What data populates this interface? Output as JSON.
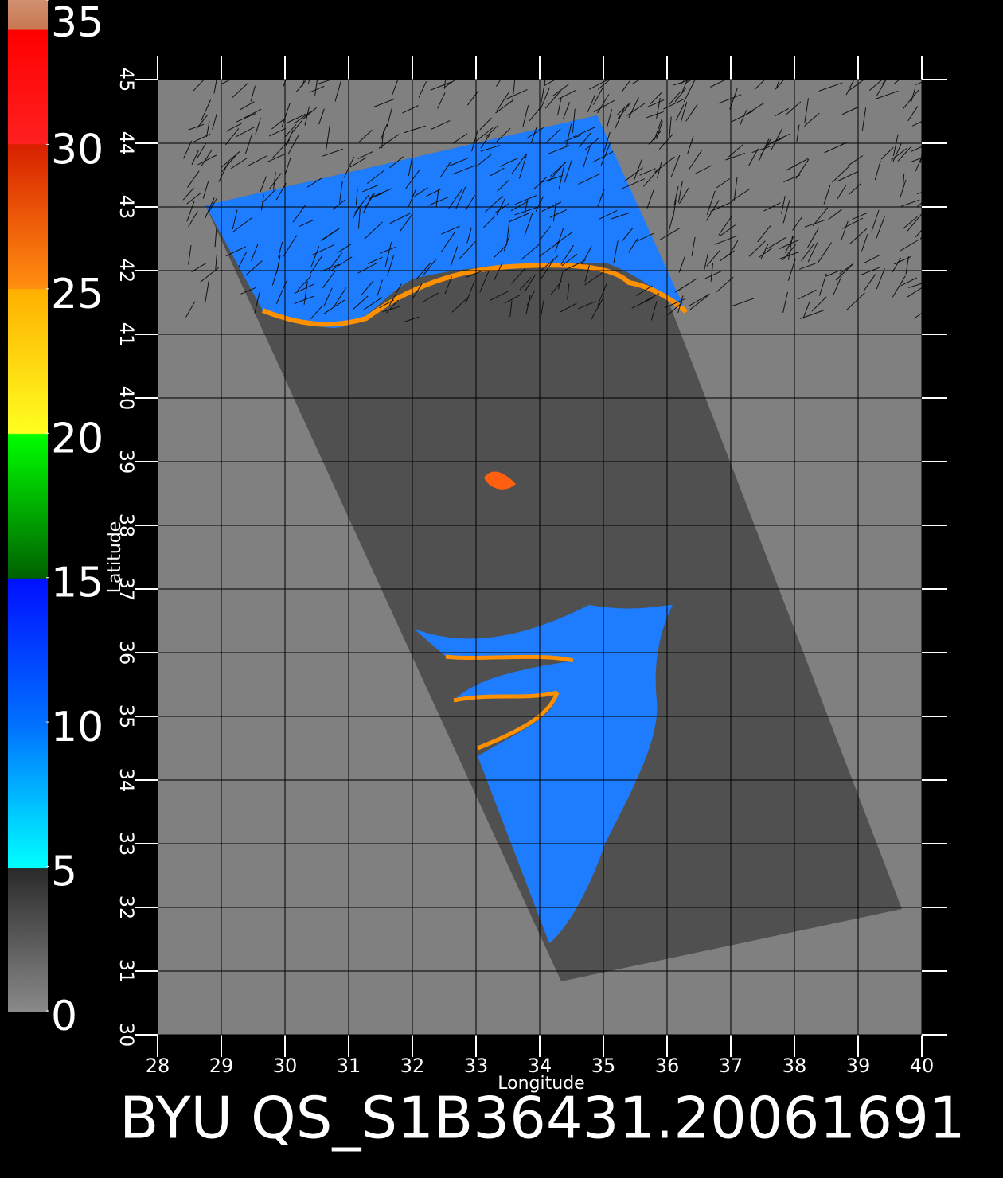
{
  "chart_data": {
    "type": "map",
    "title": "BYU QS_S1B36431.20061691",
    "x_label": "Longitude",
    "y_label": "Latitude",
    "xlim": [
      28,
      40
    ],
    "ylim": [
      30,
      45
    ],
    "xticks": [
      28,
      29,
      30,
      31,
      32,
      33,
      34,
      35,
      36,
      37,
      38,
      39,
      40
    ],
    "yticks": [
      30,
      31,
      32,
      33,
      34,
      35,
      36,
      37,
      38,
      39,
      40,
      41,
      42,
      43,
      44,
      45
    ],
    "grid": true,
    "colorbar": {
      "lim": [
        0,
        35
      ],
      "ticks": [
        0,
        5,
        10,
        15,
        20,
        25,
        30,
        35
      ]
    }
  }
}
